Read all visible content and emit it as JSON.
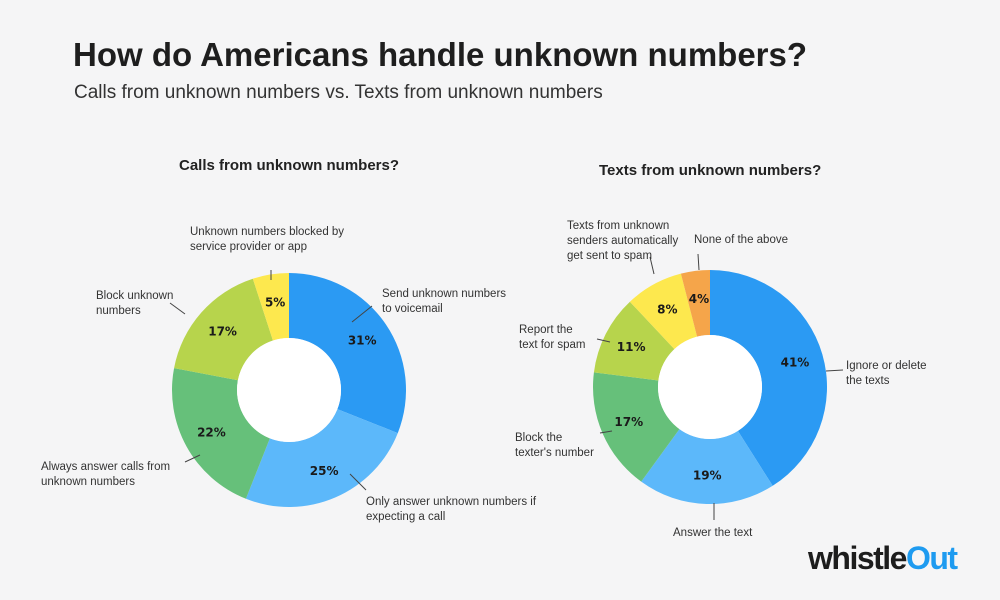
{
  "title": "How do Americans handle unknown numbers?",
  "subtitle": "Calls from unknown numbers vs. Texts from unknown numbers",
  "logo": {
    "part1": "whistle",
    "part2": "Out"
  },
  "chart_data": [
    {
      "type": "pie",
      "donut": true,
      "title": "Calls from unknown numbers?",
      "categories": [
        "Send unknown numbers to voicemail",
        "Only answer unknown numbers if expecting a call",
        "Always answer calls from unknown numbers",
        "Block unknown numbers",
        "Unknown numbers blocked by service provider or app"
      ],
      "values": [
        31,
        25,
        22,
        17,
        5
      ],
      "value_labels": [
        "31%",
        "25%",
        "22%",
        "17%",
        "5%"
      ],
      "colors": [
        "#2b9af3",
        "#5cb8fa",
        "#66c07a",
        "#b7d44c",
        "#fde84e"
      ]
    },
    {
      "type": "pie",
      "donut": true,
      "title": "Texts from unknown numbers?",
      "categories": [
        "Ignore or delete the texts",
        "Answer the text",
        "Block the texter's number",
        "Report the text for spam",
        "Texts from unknown senders automatically get sent to spam",
        "None of the above"
      ],
      "values": [
        41,
        19,
        17,
        11,
        8,
        4
      ],
      "value_labels": [
        "41%",
        "19%",
        "17%",
        "11%",
        "8%",
        "4%"
      ],
      "colors": [
        "#2b9af3",
        "#5cb8fa",
        "#66c07a",
        "#b7d44c",
        "#fde84e",
        "#f5a54a"
      ]
    }
  ]
}
